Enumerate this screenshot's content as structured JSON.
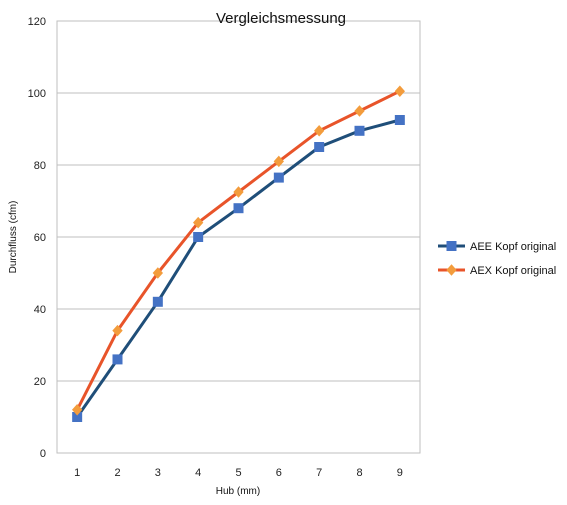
{
  "chart_data": {
    "type": "line",
    "title": "Vergleichsmessung",
    "xlabel": "Hub (mm)",
    "ylabel": "Durchfluss (cfm)",
    "categories": [
      "1",
      "2",
      "3",
      "4",
      "5",
      "6",
      "7",
      "8",
      "9"
    ],
    "ylim": [
      0,
      120
    ],
    "yticks": [
      0,
      20,
      40,
      60,
      80,
      100,
      120
    ],
    "grid": "horizontal",
    "legend_position": "right",
    "series": [
      {
        "name": "AEE Kopf original",
        "marker": "square",
        "color": "#1f4e79",
        "marker_color": "#4472c4",
        "values": [
          10,
          26,
          42,
          60,
          68,
          76.5,
          85,
          89.5,
          92.5
        ]
      },
      {
        "name": "AEX Kopf original",
        "marker": "diamond",
        "color": "#e8542a",
        "marker_color": "#f39c3c",
        "values": [
          12,
          34,
          50,
          64,
          72.5,
          81,
          89.5,
          95,
          100.5
        ]
      }
    ]
  }
}
